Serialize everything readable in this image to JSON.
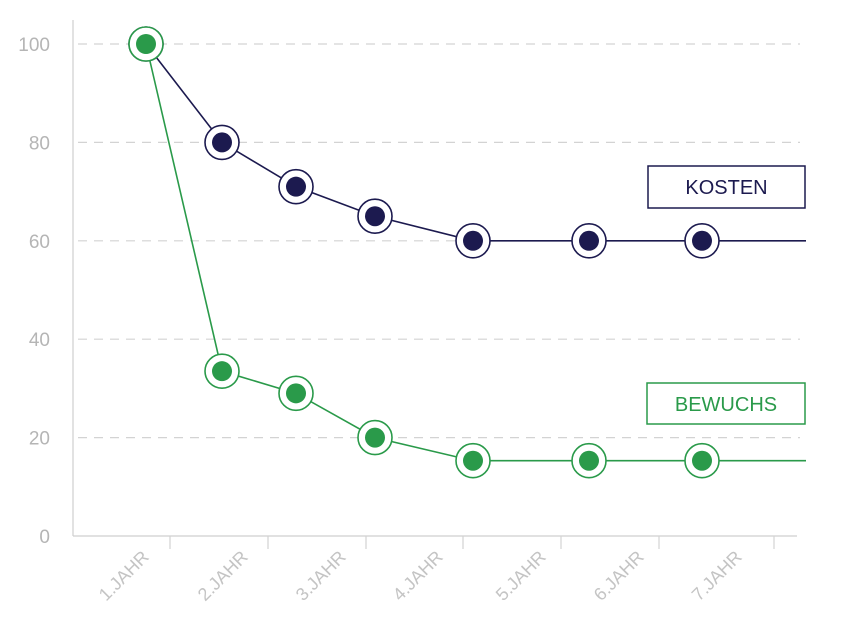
{
  "chart_data": {
    "type": "line",
    "categories": [
      "1.JAHR",
      "2.JAHR",
      "3.JAHR",
      "4.JAHR",
      "5.JAHR",
      "6.JAHR",
      "7.JAHR"
    ],
    "yticks": [
      "0",
      "20",
      "40",
      "60",
      "80",
      "100"
    ],
    "ylim": [
      0,
      100
    ],
    "grid": true,
    "series": [
      {
        "name": "KOSTEN",
        "color": "#1c1a4f",
        "values": [
          100,
          80,
          71,
          65,
          60,
          60,
          60
        ]
      },
      {
        "name": "BEWUCHS",
        "color": "#2a9a4a",
        "values": [
          100,
          33.5,
          29,
          20,
          15.3,
          15.3,
          15.3
        ]
      }
    ]
  }
}
